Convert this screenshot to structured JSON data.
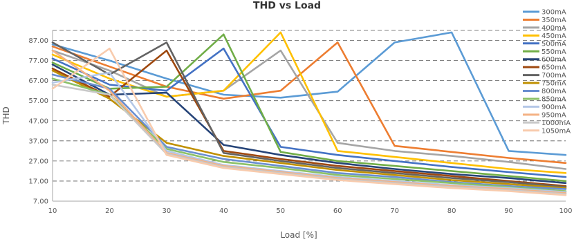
{
  "chart_data": {
    "type": "line",
    "title": "THD vs Load",
    "xlabel": "Load [%]",
    "ylabel": "THD",
    "x": [
      10,
      20,
      30,
      40,
      50,
      60,
      70,
      80,
      90,
      100
    ],
    "x_tick_labels": [
      "10",
      "20",
      "30",
      "40",
      "50",
      "60",
      "70",
      "80",
      "90",
      "100"
    ],
    "xlim": [
      10,
      100
    ],
    "y_ticks": [
      7,
      17,
      27,
      37,
      47,
      57,
      67,
      77,
      87
    ],
    "y_tick_labels": [
      "7.00",
      "17.00",
      "27.00",
      "37.00",
      "47.00",
      "57.00",
      "67.00",
      "77.00",
      "87.00"
    ],
    "ylim": [
      7,
      92
    ],
    "grid": "horizontal dashed",
    "legend_position": "right",
    "series": [
      {
        "name": "300mA",
        "color": "#5b9bd5",
        "values": [
          85,
          77,
          68,
          60,
          58.5,
          61.5,
          86,
          91,
          32,
          30
        ]
      },
      {
        "name": "350mA",
        "color": "#ed7d31",
        "values": [
          84,
          74,
          64,
          58,
          62,
          86,
          34.5,
          31.5,
          28.5,
          26
        ]
      },
      {
        "name": "400mA",
        "color": "#a5a5a5",
        "values": [
          82,
          72,
          59,
          62,
          82,
          36,
          32,
          29.5,
          26.5,
          23
        ]
      },
      {
        "name": "450mA",
        "color": "#ffc000",
        "values": [
          80,
          68,
          59,
          62,
          91,
          32,
          29,
          26,
          23,
          21
        ]
      },
      {
        "name": "500mA",
        "color": "#4472c4",
        "values": [
          78,
          65,
          62,
          83,
          34,
          30,
          27,
          24,
          21.5,
          19
        ]
      },
      {
        "name": "550mA",
        "color": "#70ad47",
        "values": [
          76,
          63,
          64,
          90,
          31.5,
          27,
          24.5,
          22,
          19.5,
          17
        ]
      },
      {
        "name": "600mA",
        "color": "#264478",
        "values": [
          75,
          60,
          61,
          35,
          30,
          26,
          23,
          20.5,
          18.5,
          16
        ]
      },
      {
        "name": "650mA",
        "color": "#9e480e",
        "values": [
          73,
          59,
          82,
          32,
          28,
          24.5,
          22,
          19.5,
          17,
          14.5
        ]
      },
      {
        "name": "700mA",
        "color": "#636363",
        "values": [
          86,
          70,
          86,
          31,
          27,
          23.5,
          21,
          18.5,
          16.5,
          14
        ]
      },
      {
        "name": "750mA",
        "color": "#c09000",
        "values": [
          72,
          58,
          36,
          29.5,
          26,
          22.5,
          20,
          17.5,
          15.5,
          13.5
        ]
      },
      {
        "name": "800mA",
        "color": "#698ed0",
        "values": [
          70,
          63,
          34,
          28,
          24.5,
          21,
          19,
          16.5,
          14.5,
          13
        ]
      },
      {
        "name": "850mA",
        "color": "#8cc168",
        "values": [
          68,
          60,
          33,
          26.5,
          23.5,
          20,
          18,
          16,
          14,
          12
        ]
      },
      {
        "name": "900mA",
        "color": "#b4c7e7",
        "values": [
          66,
          71,
          32,
          25,
          22,
          19,
          17,
          15,
          13.5,
          11.5
        ]
      },
      {
        "name": "950mA",
        "color": "#f4b183",
        "values": [
          82,
          62,
          31,
          24.5,
          21.5,
          18.5,
          16.5,
          14.5,
          13,
          11
        ]
      },
      {
        "name": "1000mA",
        "color": "#c9c9c9",
        "values": [
          65,
          60,
          30.5,
          24,
          21,
          18,
          16,
          14,
          12.5,
          10.5
        ]
      },
      {
        "name": "1050mA",
        "color": "#f8cbad",
        "values": [
          63,
          83,
          30,
          23.5,
          20.5,
          17.5,
          15.5,
          13.5,
          12,
          10
        ]
      }
    ]
  }
}
